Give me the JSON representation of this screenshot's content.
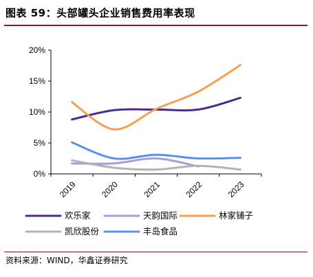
{
  "title": "图表 59：头部罐头企业销售费用率表现",
  "source": "资料来源：WIND，华鑫证券研究",
  "chart_data": {
    "type": "line",
    "x": [
      "2019",
      "2020",
      "2021",
      "2022",
      "2023"
    ],
    "ylim": [
      0,
      20
    ],
    "yticks": [
      0,
      5,
      10,
      15,
      20
    ],
    "ytick_labels": [
      "0%",
      "5%",
      "10%",
      "15%",
      "20%"
    ],
    "grid": false,
    "legend_position": "bottom",
    "smooth": true,
    "series": [
      {
        "name": "欢乐家",
        "color": "#4b2a8a",
        "values": [
          8.8,
          10.3,
          10.4,
          10.4,
          12.3
        ]
      },
      {
        "name": "天韵国际",
        "color": "#a99bd8",
        "values": [
          1.7,
          1.7,
          2.5,
          1.2,
          null
        ]
      },
      {
        "name": "林家铺子",
        "color": "#f4a04e",
        "values": [
          11.6,
          7.2,
          10.5,
          13.3,
          17.6
        ]
      },
      {
        "name": "凯欣股份",
        "color": "#b3b3b3",
        "values": [
          2.2,
          1.0,
          0.7,
          1.3,
          0.7
        ]
      },
      {
        "name": "丰岛食品",
        "color": "#5b8ff0",
        "values": [
          5.1,
          2.5,
          3.1,
          2.5,
          2.6
        ]
      }
    ]
  }
}
